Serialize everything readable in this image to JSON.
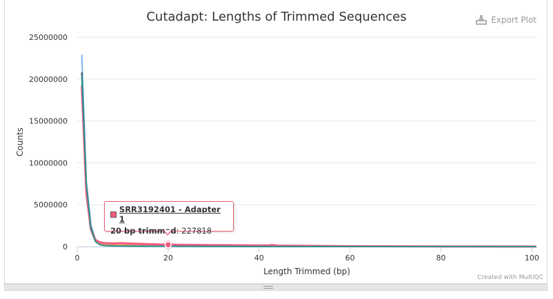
{
  "export_label": "Export Plot",
  "credit": "Created with MultiQC",
  "tooltip": {
    "series": "SRR3192401 - Adapter 1",
    "point_label": "20 bp trimmed",
    "point_value": "227818"
  },
  "colors": {
    "grid": "#e6e6e6",
    "axis": "#c0d0e0"
  },
  "chart_data": {
    "type": "line",
    "title": "Cutadapt: Lengths of Trimmed Sequences",
    "xlabel": "Length Trimmed (bp)",
    "ylabel": "Counts",
    "xlim": [
      0,
      101
    ],
    "ylim": [
      0,
      25000000
    ],
    "xticks": [
      0,
      20,
      40,
      60,
      80,
      100
    ],
    "yticks": [
      0,
      5000000,
      10000000,
      15000000,
      20000000,
      25000000
    ],
    "xtick_labels": [
      "0",
      "20",
      "40",
      "60",
      "80",
      "100"
    ],
    "ytick_labels": [
      "0",
      "5000000",
      "10000000",
      "15000000",
      "20000000",
      "25000000"
    ],
    "grid": true,
    "series": [
      {
        "color": "#7cb5ec",
        "points": [
          [
            1,
            22900000
          ],
          [
            2,
            7800000
          ],
          [
            3,
            2600000
          ],
          [
            4,
            900000
          ],
          [
            5,
            380000
          ],
          [
            6,
            200000
          ],
          [
            8,
            120000
          ],
          [
            12,
            80000
          ],
          [
            20,
            50000
          ],
          [
            40,
            30000
          ],
          [
            60,
            20000
          ],
          [
            101,
            8000
          ]
        ]
      },
      {
        "color": "#434348",
        "points": [
          [
            1,
            20800000
          ],
          [
            2,
            7400000
          ],
          [
            3,
            2300000
          ],
          [
            4,
            700000
          ],
          [
            5,
            300000
          ],
          [
            6,
            160000
          ],
          [
            8,
            100000
          ],
          [
            12,
            70000
          ],
          [
            20,
            45000
          ],
          [
            40,
            25000
          ],
          [
            60,
            15000
          ],
          [
            101,
            6000
          ]
        ]
      },
      {
        "color": "#90ed7d",
        "points": [
          [
            1,
            19500000
          ],
          [
            2,
            6600000
          ],
          [
            3,
            2000000
          ],
          [
            4,
            620000
          ],
          [
            5,
            260000
          ],
          [
            6,
            150000
          ],
          [
            8,
            90000
          ],
          [
            12,
            60000
          ],
          [
            20,
            40000
          ],
          [
            40,
            22000
          ],
          [
            60,
            14000
          ],
          [
            101,
            5000
          ]
        ]
      },
      {
        "color": "#f7a35c",
        "points": [
          [
            1,
            19000000
          ],
          [
            2,
            6200000
          ],
          [
            3,
            1900000
          ],
          [
            4,
            650000
          ],
          [
            5,
            330000
          ],
          [
            6,
            260000
          ],
          [
            8,
            250000
          ],
          [
            12,
            230000
          ],
          [
            20,
            200000
          ],
          [
            40,
            100000
          ],
          [
            60,
            40000
          ],
          [
            101,
            10000
          ]
        ]
      },
      {
        "color": "#f15c80",
        "points": [
          [
            1,
            19200000
          ],
          [
            2,
            6400000
          ],
          [
            3,
            2100000
          ],
          [
            4,
            780000
          ],
          [
            5,
            520000
          ],
          [
            6,
            420000
          ],
          [
            8,
            380000
          ],
          [
            10,
            420000
          ],
          [
            12,
            360000
          ],
          [
            16,
            300000
          ],
          [
            20,
            227818
          ],
          [
            30,
            180000
          ],
          [
            42,
            140000
          ],
          [
            43,
            200000
          ],
          [
            44,
            120000
          ],
          [
            60,
            50000
          ],
          [
            80,
            20000
          ],
          [
            101,
            10000
          ]
        ]
      },
      {
        "color": "#2b908f",
        "points": [
          [
            1,
            20500000
          ],
          [
            2,
            7500000
          ],
          [
            3,
            2200000
          ],
          [
            4,
            600000
          ],
          [
            5,
            220000
          ],
          [
            6,
            120000
          ],
          [
            8,
            80000
          ],
          [
            12,
            60000
          ],
          [
            20,
            40000
          ],
          [
            40,
            25000
          ],
          [
            60,
            15000
          ],
          [
            101,
            7000
          ]
        ]
      }
    ],
    "highlight": {
      "series_index": 4,
      "x": 20,
      "y": 227818
    }
  }
}
